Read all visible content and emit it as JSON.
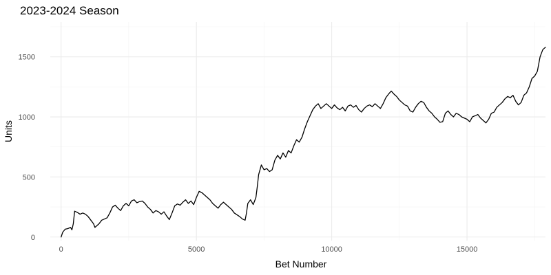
{
  "chart_data": {
    "type": "line",
    "title": "2023-2024 Season",
    "xlabel": "Bet Number",
    "ylabel": "Units",
    "xlim": [
      -400,
      17900
    ],
    "ylim": [
      -30,
      1790
    ],
    "x_ticks": [
      0,
      5000,
      10000,
      15000
    ],
    "x_tick_labels": [
      "0",
      "5000",
      "10000",
      "15000"
    ],
    "y_ticks": [
      0,
      500,
      1000,
      1500
    ],
    "y_tick_labels": [
      "0",
      "500",
      "1000",
      "1500"
    ],
    "x_minor": [
      2500,
      7500,
      12500,
      17500
    ],
    "y_minor": [
      250,
      750,
      1250,
      1750
    ],
    "grid": true,
    "legend": "none",
    "series": [
      {
        "color": "#000000",
        "points": [
          [
            0,
            0
          ],
          [
            60,
            40
          ],
          [
            150,
            65
          ],
          [
            250,
            70
          ],
          [
            350,
            80
          ],
          [
            400,
            60
          ],
          [
            450,
            110
          ],
          [
            500,
            215
          ],
          [
            600,
            205
          ],
          [
            700,
            190
          ],
          [
            800,
            200
          ],
          [
            900,
            190
          ],
          [
            1000,
            170
          ],
          [
            1100,
            140
          ],
          [
            1200,
            110
          ],
          [
            1250,
            80
          ],
          [
            1300,
            90
          ],
          [
            1400,
            110
          ],
          [
            1500,
            140
          ],
          [
            1600,
            150
          ],
          [
            1700,
            160
          ],
          [
            1800,
            200
          ],
          [
            1900,
            250
          ],
          [
            2000,
            265
          ],
          [
            2100,
            240
          ],
          [
            2200,
            220
          ],
          [
            2300,
            260
          ],
          [
            2400,
            280
          ],
          [
            2500,
            260
          ],
          [
            2600,
            300
          ],
          [
            2700,
            310
          ],
          [
            2800,
            285
          ],
          [
            2900,
            295
          ],
          [
            3000,
            300
          ],
          [
            3100,
            280
          ],
          [
            3200,
            250
          ],
          [
            3300,
            230
          ],
          [
            3400,
            200
          ],
          [
            3500,
            220
          ],
          [
            3600,
            210
          ],
          [
            3700,
            190
          ],
          [
            3800,
            210
          ],
          [
            3900,
            175
          ],
          [
            4000,
            145
          ],
          [
            4100,
            200
          ],
          [
            4200,
            260
          ],
          [
            4300,
            275
          ],
          [
            4400,
            265
          ],
          [
            4500,
            290
          ],
          [
            4600,
            310
          ],
          [
            4700,
            280
          ],
          [
            4800,
            300
          ],
          [
            4900,
            270
          ],
          [
            5000,
            330
          ],
          [
            5100,
            380
          ],
          [
            5200,
            370
          ],
          [
            5300,
            350
          ],
          [
            5400,
            330
          ],
          [
            5500,
            310
          ],
          [
            5600,
            280
          ],
          [
            5700,
            260
          ],
          [
            5800,
            240
          ],
          [
            5900,
            270
          ],
          [
            6000,
            290
          ],
          [
            6100,
            270
          ],
          [
            6200,
            250
          ],
          [
            6300,
            230
          ],
          [
            6400,
            200
          ],
          [
            6500,
            185
          ],
          [
            6600,
            170
          ],
          [
            6700,
            150
          ],
          [
            6800,
            140
          ],
          [
            6850,
            200
          ],
          [
            6900,
            280
          ],
          [
            7000,
            310
          ],
          [
            7100,
            270
          ],
          [
            7150,
            300
          ],
          [
            7200,
            330
          ],
          [
            7250,
            420
          ],
          [
            7300,
            520
          ],
          [
            7400,
            600
          ],
          [
            7500,
            560
          ],
          [
            7600,
            570
          ],
          [
            7700,
            545
          ],
          [
            7800,
            560
          ],
          [
            7900,
            640
          ],
          [
            8000,
            680
          ],
          [
            8100,
            650
          ],
          [
            8200,
            700
          ],
          [
            8300,
            665
          ],
          [
            8400,
            720
          ],
          [
            8500,
            700
          ],
          [
            8600,
            760
          ],
          [
            8700,
            810
          ],
          [
            8800,
            790
          ],
          [
            8900,
            830
          ],
          [
            9000,
            900
          ],
          [
            9100,
            960
          ],
          [
            9200,
            1010
          ],
          [
            9300,
            1060
          ],
          [
            9400,
            1090
          ],
          [
            9500,
            1110
          ],
          [
            9600,
            1070
          ],
          [
            9700,
            1090
          ],
          [
            9800,
            1110
          ],
          [
            9900,
            1090
          ],
          [
            10000,
            1070
          ],
          [
            10100,
            1100
          ],
          [
            10200,
            1075
          ],
          [
            10300,
            1060
          ],
          [
            10400,
            1080
          ],
          [
            10500,
            1050
          ],
          [
            10600,
            1090
          ],
          [
            10700,
            1100
          ],
          [
            10800,
            1080
          ],
          [
            10900,
            1095
          ],
          [
            11000,
            1060
          ],
          [
            11100,
            1040
          ],
          [
            11200,
            1070
          ],
          [
            11300,
            1090
          ],
          [
            11400,
            1100
          ],
          [
            11500,
            1085
          ],
          [
            11600,
            1110
          ],
          [
            11700,
            1090
          ],
          [
            11800,
            1070
          ],
          [
            11900,
            1110
          ],
          [
            12000,
            1160
          ],
          [
            12100,
            1190
          ],
          [
            12200,
            1215
          ],
          [
            12300,
            1190
          ],
          [
            12400,
            1170
          ],
          [
            12500,
            1140
          ],
          [
            12600,
            1120
          ],
          [
            12700,
            1100
          ],
          [
            12800,
            1090
          ],
          [
            12900,
            1050
          ],
          [
            13000,
            1040
          ],
          [
            13100,
            1080
          ],
          [
            13200,
            1110
          ],
          [
            13300,
            1130
          ],
          [
            13400,
            1120
          ],
          [
            13500,
            1080
          ],
          [
            13600,
            1050
          ],
          [
            13700,
            1030
          ],
          [
            13800,
            1000
          ],
          [
            13900,
            980
          ],
          [
            14000,
            955
          ],
          [
            14100,
            960
          ],
          [
            14200,
            1030
          ],
          [
            14300,
            1050
          ],
          [
            14400,
            1020
          ],
          [
            14500,
            1000
          ],
          [
            14600,
            1030
          ],
          [
            14700,
            1020
          ],
          [
            14800,
            1000
          ],
          [
            14900,
            990
          ],
          [
            15000,
            980
          ],
          [
            15100,
            960
          ],
          [
            15200,
            1000
          ],
          [
            15300,
            1010
          ],
          [
            15400,
            1020
          ],
          [
            15500,
            990
          ],
          [
            15600,
            970
          ],
          [
            15700,
            950
          ],
          [
            15800,
            980
          ],
          [
            15900,
            1030
          ],
          [
            16000,
            1040
          ],
          [
            16100,
            1080
          ],
          [
            16200,
            1100
          ],
          [
            16300,
            1120
          ],
          [
            16400,
            1150
          ],
          [
            16500,
            1170
          ],
          [
            16600,
            1160
          ],
          [
            16700,
            1180
          ],
          [
            16800,
            1130
          ],
          [
            16900,
            1100
          ],
          [
            17000,
            1120
          ],
          [
            17100,
            1180
          ],
          [
            17200,
            1200
          ],
          [
            17300,
            1250
          ],
          [
            17400,
            1320
          ],
          [
            17500,
            1340
          ],
          [
            17600,
            1380
          ],
          [
            17700,
            1500
          ],
          [
            17800,
            1560
          ],
          [
            17900,
            1580
          ]
        ]
      }
    ]
  }
}
